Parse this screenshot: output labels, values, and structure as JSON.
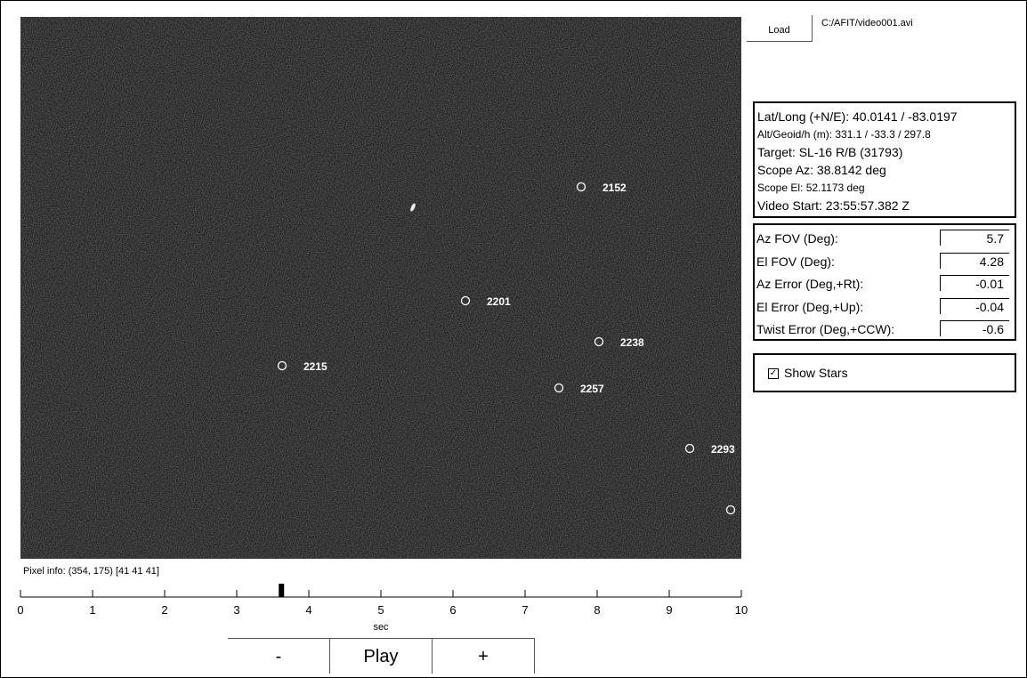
{
  "load_button": "Load",
  "file_path": "C:/AFIT/video001.avi",
  "info": [
    "Lat/Long (+N/E): 40.0141 / -83.0197",
    "Alt/Geoid/h (m): 331.1 / -33.3 / 297.8",
    "Target: SL-16 R/B (31793)",
    "Scope Az: 38.8142 deg",
    "Scope El: 52.1173 deg",
    "Video Start: 23:55:57.382 Z"
  ],
  "fields": [
    {
      "label": "Az FOV (Deg):",
      "value": "5.7"
    },
    {
      "label": "El FOV (Deg):",
      "value": "4.28"
    },
    {
      "label": "Az Error (Deg,+Rt):",
      "value": "-0.01"
    },
    {
      "label": "El Error (Deg,+Up):",
      "value": "-0.04"
    },
    {
      "label": "Twist Error (Deg,+CCW):",
      "value": "-0.6"
    }
  ],
  "show_stars": "Show Stars",
  "stars": [
    "2152",
    "2201",
    "2238",
    "2215",
    "2257",
    "2293"
  ],
  "pixel_info": "Pixel info: (354, 175)  [41 41 41]",
  "timeline": {
    "label": "sec",
    "xlim": [
      0,
      10
    ],
    "xticks": [
      0,
      1,
      2,
      3,
      4,
      5,
      6,
      7,
      8,
      9,
      10
    ],
    "position": 3.62
  },
  "buttons": [
    "-",
    "Play",
    "+"
  ]
}
